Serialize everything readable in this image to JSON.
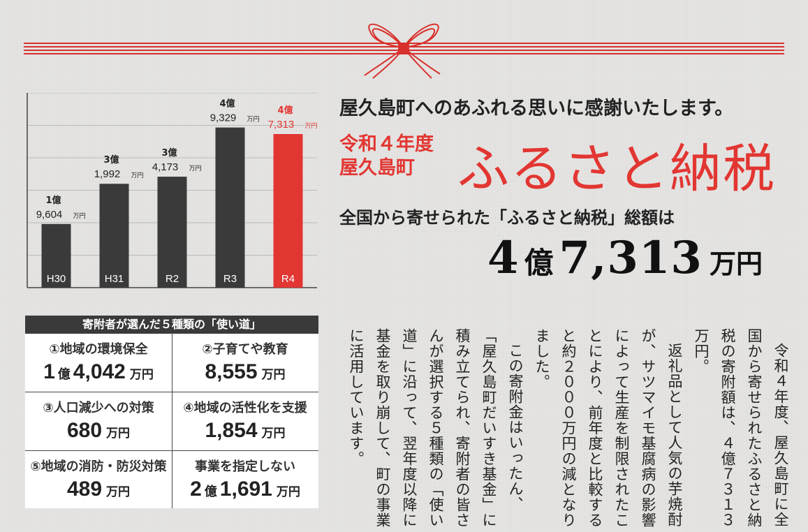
{
  "header": {
    "headline": "屋久島町へのあふれる思いに感謝いたします。",
    "year_line1": "令和４年度",
    "year_line2": "屋久島町",
    "title": "ふるさと納税",
    "subhead": "全国から寄せられた「ふるさと納税」総額は",
    "total": {
      "oku_num": "4",
      "oku_unit": "億",
      "man_num": "7,313",
      "man_unit": "万円"
    }
  },
  "colors": {
    "accent": "#e23632",
    "bar_dark": "#3a3a3a",
    "background": "#e4e3e1",
    "table_header": "#3a3a3a"
  },
  "chart_data": {
    "type": "bar",
    "categories": [
      "H30",
      "H31",
      "R2",
      "R3",
      "R4"
    ],
    "values": [
      19604,
      31992,
      34173,
      49329,
      47313
    ],
    "value_unit": "万円",
    "labels_top": [
      "1億",
      "3億",
      "3億",
      "4億",
      "4億"
    ],
    "labels_bottom": [
      "9,604",
      "1,992",
      "4,173",
      "9,329",
      "7,313"
    ],
    "label_unit": "万円",
    "highlight_index": 4,
    "ylim": [
      0,
      60000
    ],
    "grid": true,
    "title": "",
    "xlabel": "",
    "ylabel": ""
  },
  "uses": {
    "title": "寄附者が選んだ５種類の「使い道」",
    "items": [
      {
        "label": "①地域の環境保全",
        "oku": "1",
        "oku_unit": "億",
        "man": "4,042",
        "man_unit": "万円"
      },
      {
        "label": "②子育てや教育",
        "oku": "",
        "oku_unit": "",
        "man": "8,555",
        "man_unit": "万円"
      },
      {
        "label": "③人口減少への対策",
        "oku": "",
        "oku_unit": "",
        "man": "680",
        "man_unit": "万円"
      },
      {
        "label": "④地域の活性化を支援",
        "oku": "",
        "oku_unit": "",
        "man": "1,854",
        "man_unit": "万円"
      },
      {
        "label": "⑤地域の消防・防災対策",
        "oku": "",
        "oku_unit": "",
        "man": "489",
        "man_unit": "万円"
      },
      {
        "label": "事業を指定しない",
        "oku": "2",
        "oku_unit": "億",
        "man": "1,691",
        "man_unit": "万円"
      }
    ]
  },
  "body": {
    "p1": "令和４年度、屋久島町に全国から寄せられたふるさと納税の寄附額は、４億７３１３万円。",
    "p2": "返礼品として人気の芋焼酎が、サツマイモ基腐病の影響によって生産を制限されたことにより、前年度と比較すると約２０００万円の減となりました。",
    "p3": "この寄附金はいったん、「屋久島町だいすき基金」に積み立てられ、寄附者の皆さんが選択する５種類の「使い道」に沿って、翌年度以降に基金を取り崩して、町の事業に活用しています。"
  }
}
